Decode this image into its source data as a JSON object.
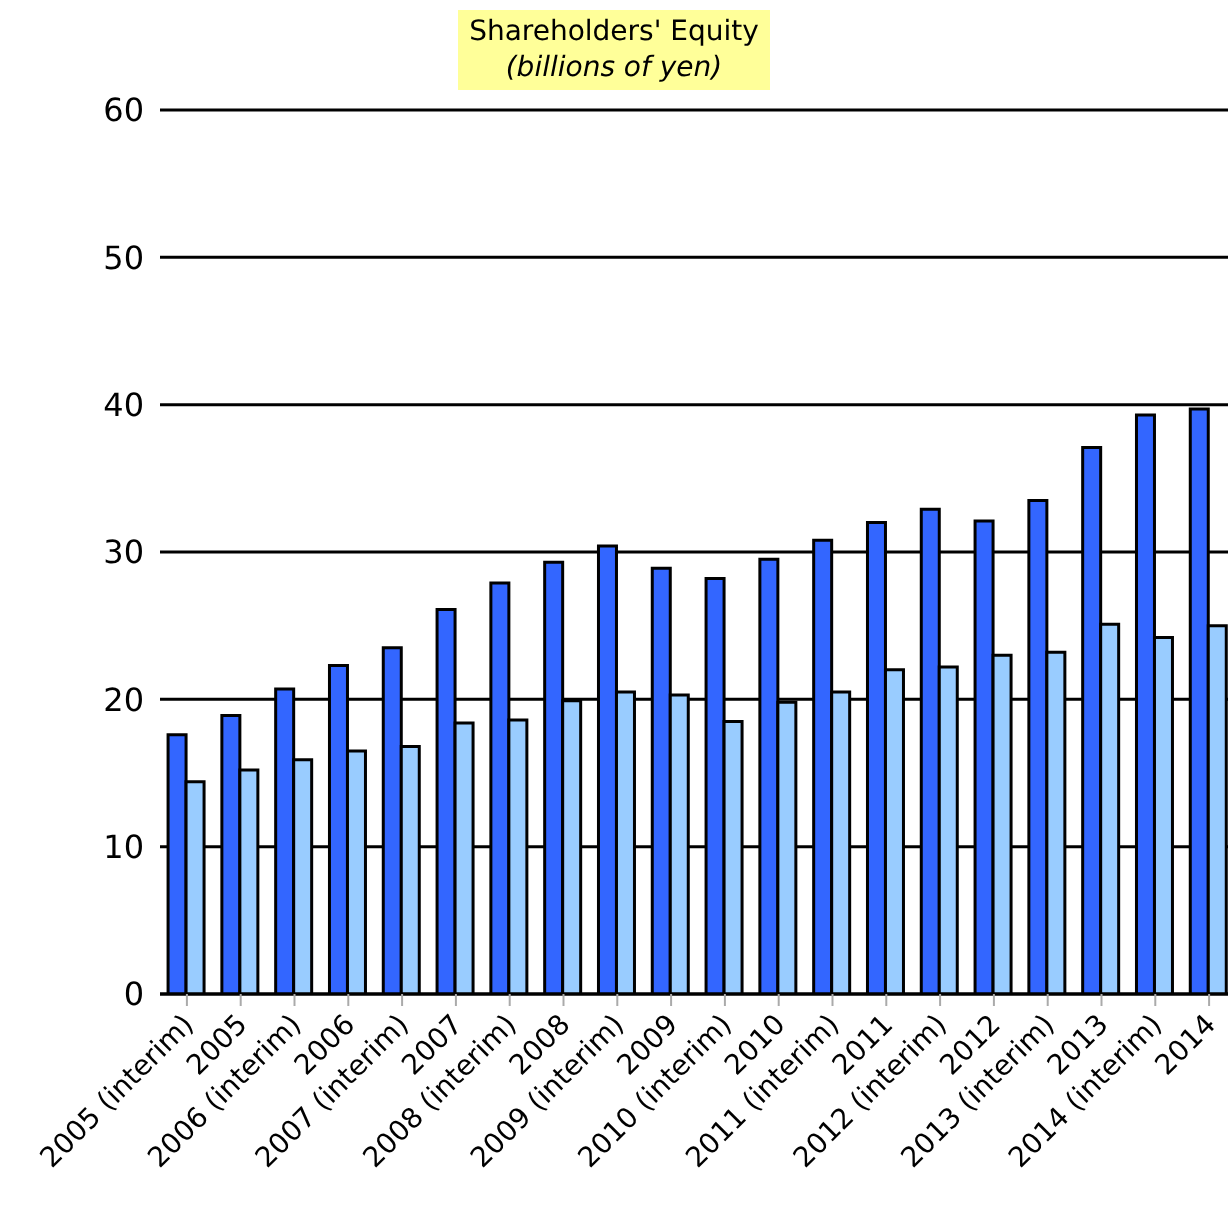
{
  "chart_data": {
    "type": "bar",
    "title": "Shareholders' Equity",
    "subtitle": "(billions of yen)",
    "categories": [
      "2005 (interim)",
      "2005",
      "2006 (interim)",
      "2006",
      "2007 (interim)",
      "2007",
      "2008 (interim)",
      "2008",
      "2009 (interim)",
      "2009",
      "2010 (interim)",
      "2010",
      "2011 (interim)",
      "2011",
      "2012 (interim)",
      "2012",
      "2013 (interim)",
      "2013",
      "2014 (interim)",
      "2014"
    ],
    "series": [
      {
        "color": "#3366ff",
        "values": [
          17.6,
          18.9,
          20.7,
          22.3,
          23.5,
          26.1,
          27.9,
          29.3,
          30.4,
          28.9,
          28.2,
          29.5,
          30.8,
          32.0,
          32.9,
          32.1,
          33.5,
          37.1,
          39.3,
          39.7
        ]
      },
      {
        "color": "#99ccff",
        "values": [
          14.4,
          15.2,
          15.9,
          16.5,
          16.8,
          18.4,
          18.6,
          19.9,
          20.5,
          20.3,
          18.5,
          19.8,
          20.5,
          22.0,
          22.2,
          23.0,
          23.2,
          25.1,
          24.2,
          25.0
        ]
      }
    ],
    "ylim": [
      0,
      60
    ],
    "yticks": [
      0,
      10,
      20,
      30,
      40,
      50,
      60
    ],
    "grid": "y",
    "legend": false
  }
}
